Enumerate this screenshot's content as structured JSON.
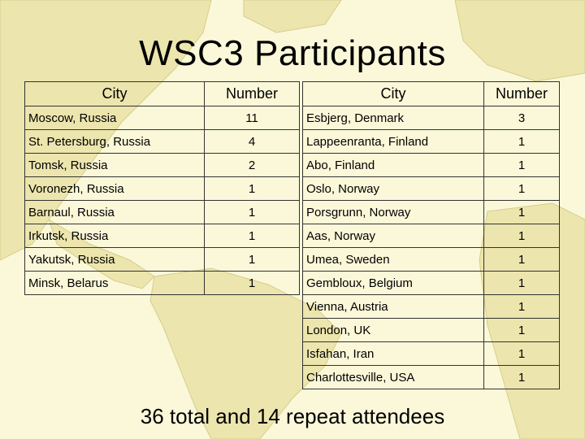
{
  "title": "WSC3 Participants",
  "left_table": {
    "headers": [
      "City",
      "Number"
    ],
    "rows": [
      [
        "Moscow, Russia",
        "11"
      ],
      [
        "St. Petersburg, Russia",
        "4"
      ],
      [
        "Tomsk, Russia",
        "2"
      ],
      [
        "Voronezh, Russia",
        "1"
      ],
      [
        "Barnaul, Russia",
        "1"
      ],
      [
        "Irkutsk, Russia",
        "1"
      ],
      [
        "Yakutsk, Russia",
        "1"
      ],
      [
        "Minsk, Belarus",
        "1"
      ]
    ]
  },
  "right_table": {
    "headers": [
      "City",
      "Number"
    ],
    "rows": [
      [
        "Esbjerg, Denmark",
        "3"
      ],
      [
        "Lappeenranta, Finland",
        "1"
      ],
      [
        "Abo, Finland",
        "1"
      ],
      [
        "Oslo, Norway",
        "1"
      ],
      [
        "Porsgrunn, Norway",
        "1"
      ],
      [
        "Aas, Norway",
        "1"
      ],
      [
        "Umea, Sweden",
        "1"
      ],
      [
        "Gembloux, Belgium",
        "1"
      ],
      [
        "Vienna, Austria",
        "1"
      ],
      [
        "London, UK",
        "1"
      ],
      [
        "Isfahan, Iran",
        "1"
      ],
      [
        "Charlottesville, USA",
        "1"
      ]
    ]
  },
  "footer": "36 total and 14 repeat attendees",
  "colors": {
    "background": "#fbf8d9",
    "map_fill": "#e9e2a6"
  }
}
